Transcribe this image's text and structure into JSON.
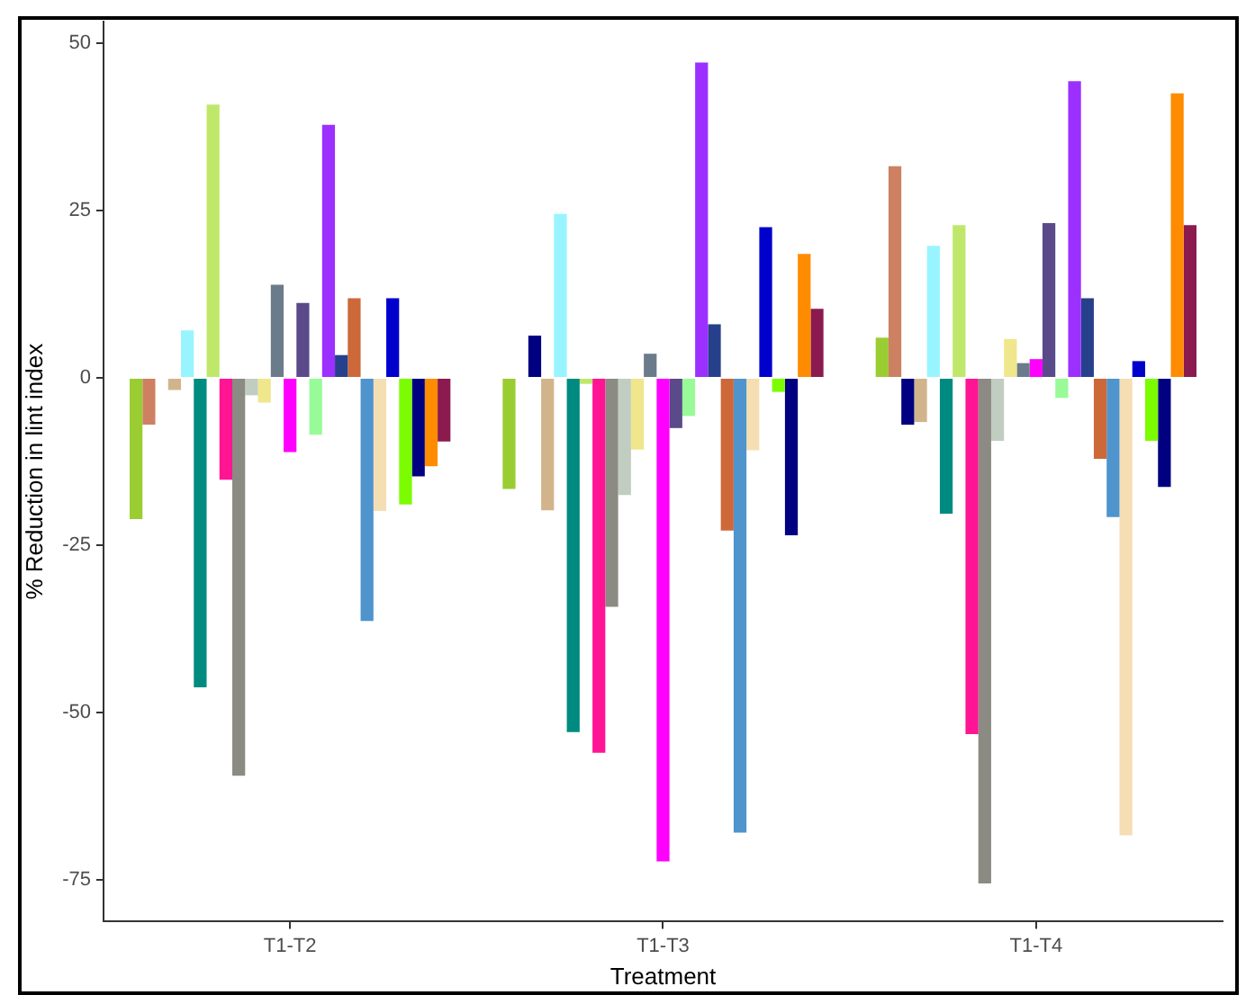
{
  "chart_data": {
    "type": "bar",
    "xlabel": "Treatment",
    "ylabel": "% Reduction in lint index",
    "categories": [
      "T1-T2",
      "T1-T3",
      "T1-T4"
    ],
    "ylim": [
      -81.2,
      53.2
    ],
    "yticks": [
      -75,
      -50,
      -25,
      0,
      25,
      50
    ],
    "grid": false,
    "legend": false,
    "series": [
      {
        "color": "#9acd32",
        "values": [
          -21.1,
          -16.6,
          6
        ]
      },
      {
        "color": "#cd8162",
        "values": [
          -7,
          0,
          31.6
        ]
      },
      {
        "color": "#000080",
        "values": [
          0,
          6.3,
          -7
        ]
      },
      {
        "color": "#d2b48c",
        "values": [
          -1.8,
          -19.8,
          -6.6
        ]
      },
      {
        "color": "#98f5ff",
        "values": [
          7.1,
          24.5,
          19.7
        ]
      },
      {
        "color": "#008b80",
        "values": [
          -46.2,
          -52.9,
          -20.3
        ]
      },
      {
        "color": "#bfe86b",
        "values": [
          40.8,
          -0.9,
          22.8
        ]
      },
      {
        "color": "#ff1493",
        "values": [
          -15.2,
          -56,
          -53.2
        ]
      },
      {
        "color": "#8b8b83",
        "values": [
          -59.4,
          -34.2,
          -75.5
        ]
      },
      {
        "color": "#c1cdc1",
        "values": [
          -2.6,
          -17.5,
          -9.4
        ]
      },
      {
        "color": "#f0e68c",
        "values": [
          -3.7,
          -10.7,
          5.8
        ]
      },
      {
        "color": "#6c7b8b",
        "values": [
          13.9,
          3.6,
          2.2
        ]
      },
      {
        "color": "#ff00ff",
        "values": [
          -11.1,
          -72.2,
          2.8
        ]
      },
      {
        "color": "#5a4a8a",
        "values": [
          11.2,
          -7.5,
          23.1
        ]
      },
      {
        "color": "#98fb98",
        "values": [
          -8.5,
          -5.7,
          -3
        ]
      },
      {
        "color": "#9b30ff",
        "values": [
          37.8,
          47.1,
          44.3
        ]
      },
      {
        "color": "#27408b",
        "values": [
          3.4,
          8,
          11.9
        ]
      },
      {
        "color": "#cd6839",
        "values": [
          11.9,
          -22.8,
          -12.1
        ]
      },
      {
        "color": "#4f94cd",
        "values": [
          -36.3,
          -67.9,
          -20.8
        ]
      },
      {
        "color": "#f5deb3",
        "values": [
          -19.9,
          -10.8,
          -68.3
        ]
      },
      {
        "color": "#0000cd",
        "values": [
          11.9,
          22.5,
          2.5
        ]
      },
      {
        "color": "#7cfc00",
        "values": [
          -18.9,
          -2.1,
          -9.4
        ]
      },
      {
        "color": "#000080",
        "values": [
          -14.7,
          -23.5,
          -16.3
        ]
      },
      {
        "color": "#ff8c00",
        "values": [
          -13.2,
          18.5,
          42.5
        ]
      },
      {
        "color": "#8b1a4f",
        "values": [
          -9.5,
          10.3,
          22.8
        ]
      }
    ]
  }
}
